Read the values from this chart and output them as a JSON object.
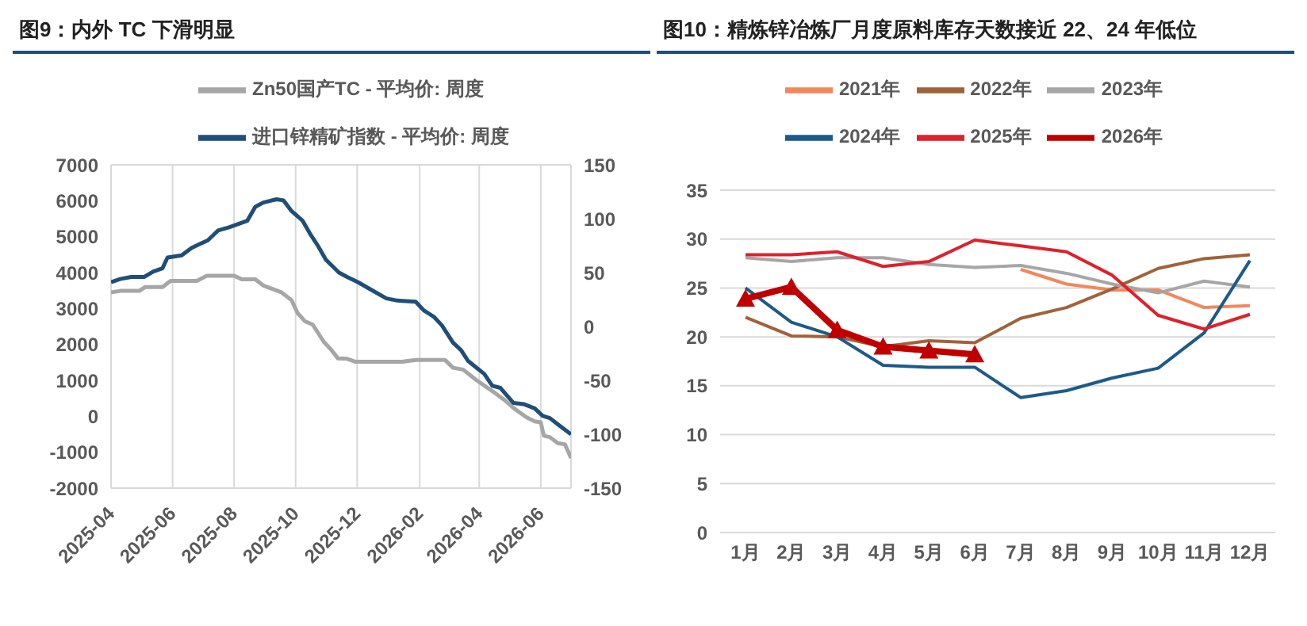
{
  "chart_data": [
    {
      "type": "line",
      "title": "图9：内外 TC 下滑明显",
      "legend": "top",
      "grid": true,
      "xlim": [
        "2025-04-01",
        "2026-07-01"
      ],
      "xticks": [
        "2025-04",
        "2025-06",
        "2025-08",
        "2025-10",
        "2025-12",
        "2026-02",
        "2026-04",
        "2026-06"
      ],
      "ylim": [
        -2000,
        7000
      ],
      "yticks": [
        -2000,
        -1000,
        0,
        1000,
        2000,
        3000,
        4000,
        5000,
        6000,
        7000
      ],
      "y2lim": [
        -150,
        150
      ],
      "y2ticks": [
        -150,
        -100,
        -50,
        0,
        50,
        100,
        150
      ],
      "series": [
        {
          "name": "Zn50国产TC - 平均价: 周度",
          "color": "#a6a6a6",
          "x": [
            "2025-04-01",
            "2025-04-10",
            "2025-04-29",
            "2025-05-05",
            "2025-05-22",
            "2025-05-30",
            "2025-06-25",
            "2025-07-05",
            "2025-08-01",
            "2025-08-09",
            "2025-08-22",
            "2025-08-30",
            "2025-09-17",
            "2025-09-27",
            "2025-10-03",
            "2025-10-10",
            "2025-10-18",
            "2025-10-29",
            "2025-11-05",
            "2025-11-12",
            "2025-11-21",
            "2025-11-29",
            "2025-12-20",
            "2026-01-15",
            "2026-01-28",
            "2026-02-26",
            "2026-03-06",
            "2026-03-16",
            "2026-03-29",
            "2026-04-14",
            "2026-04-27",
            "2026-05-05",
            "2026-05-18",
            "2026-05-26",
            "2026-06-01",
            "2026-06-04",
            "2026-06-10",
            "2026-06-18",
            "2026-06-25",
            "2026-07-01"
          ],
          "values": [
            3450,
            3490,
            3490,
            3600,
            3600,
            3770,
            3770,
            3910,
            3910,
            3810,
            3810,
            3640,
            3450,
            3230,
            2870,
            2650,
            2550,
            2070,
            1860,
            1610,
            1600,
            1520,
            1520,
            1520,
            1570,
            1570,
            1350,
            1300,
            1010,
            700,
            430,
            230,
            -30,
            -140,
            -170,
            -540,
            -580,
            -750,
            -780,
            -1160
          ]
        },
        {
          "name": "进口锌精矿指数 - 平均价: 周度",
          "color": "#1f4e79",
          "axis": "y2",
          "x": [
            "2025-04-01",
            "2025-04-10",
            "2025-04-21",
            "2025-05-04",
            "2025-05-13",
            "2025-05-22",
            "2025-05-27",
            "2025-06-10",
            "2025-06-20",
            "2025-07-06",
            "2025-07-16",
            "2025-07-27",
            "2025-08-14",
            "2025-08-22",
            "2025-08-30",
            "2025-09-12",
            "2025-09-19",
            "2025-09-27",
            "2025-10-08",
            "2025-10-16",
            "2025-10-23",
            "2025-10-31",
            "2025-11-13",
            "2025-11-21",
            "2025-12-02",
            "2025-12-15",
            "2025-12-30",
            "2026-01-10",
            "2026-01-28",
            "2026-02-05",
            "2026-02-15",
            "2026-02-23",
            "2026-03-06",
            "2026-03-14",
            "2026-03-21",
            "2026-03-29",
            "2026-04-06",
            "2026-04-14",
            "2026-04-22",
            "2026-05-05",
            "2026-05-15",
            "2026-05-26",
            "2026-06-03",
            "2026-06-10",
            "2026-06-21",
            "2026-07-01"
          ],
          "values": [
            41,
            44,
            46,
            46,
            51,
            54,
            64,
            66,
            73,
            80,
            89,
            92,
            98,
            111,
            115,
            118,
            117,
            107,
            98,
            85,
            75,
            62,
            50,
            46,
            41,
            34,
            26,
            24,
            23,
            15,
            9,
            1,
            -15,
            -22,
            -32,
            -38,
            -44,
            -55,
            -57,
            -71,
            -72,
            -76,
            -83,
            -85,
            -93,
            -100
          ]
        }
      ]
    },
    {
      "type": "line",
      "title": "图10：精炼锌冶炼厂月度原料库存天数接近 22、24 年低位",
      "legend": "top",
      "grid": "y",
      "categories": [
        "1月",
        "2月",
        "3月",
        "4月",
        "5月",
        "6月",
        "7月",
        "8月",
        "9月",
        "10月",
        "11月",
        "12月"
      ],
      "ylim": [
        0,
        35
      ],
      "yticks": [
        0,
        5,
        10,
        15,
        20,
        25,
        30,
        35
      ],
      "series": [
        {
          "name": "2021年",
          "color": "#f4875a",
          "values": [
            null,
            null,
            null,
            null,
            null,
            null,
            26.9,
            25.4,
            24.8,
            24.8,
            23.0,
            23.2
          ]
        },
        {
          "name": "2022年",
          "color": "#a0623a",
          "values": [
            22.0,
            20.1,
            20.0,
            19.0,
            19.6,
            19.4,
            21.9,
            23.0,
            24.9,
            27.0,
            28.0,
            28.4
          ]
        },
        {
          "name": "2023年",
          "color": "#a6a6a6",
          "values": [
            28.1,
            27.7,
            28.1,
            28.1,
            27.4,
            27.1,
            27.3,
            26.5,
            25.4,
            24.5,
            25.7,
            25.1
          ]
        },
        {
          "name": "2024年",
          "color": "#1c5a8a",
          "values": [
            25.0,
            21.5,
            20.0,
            17.1,
            16.9,
            16.9,
            13.8,
            14.5,
            15.8,
            16.8,
            20.4,
            27.8
          ]
        },
        {
          "name": "2025年",
          "color": "#e0202a",
          "values": [
            28.4,
            28.4,
            28.7,
            27.2,
            27.7,
            29.9,
            29.3,
            28.7,
            26.3,
            22.2,
            20.8,
            22.3
          ]
        },
        {
          "name": "2026年",
          "color": "#c00000",
          "marker": "triangle",
          "values": [
            23.9,
            25.1,
            20.7,
            19.0,
            18.6,
            18.2,
            null,
            null,
            null,
            null,
            null,
            null
          ]
        }
      ]
    }
  ]
}
